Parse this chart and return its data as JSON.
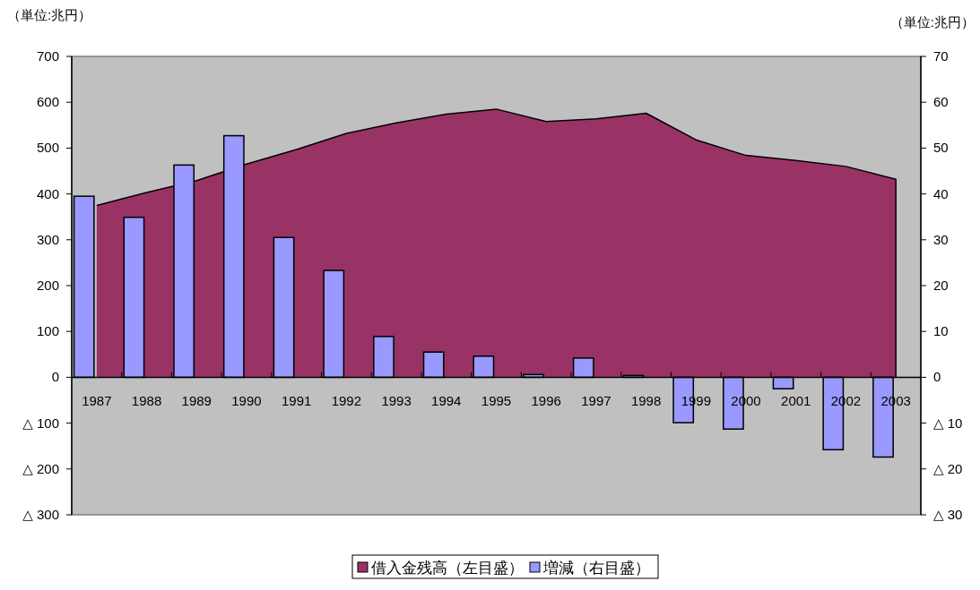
{
  "chart_data": {
    "type": "bar",
    "ylabel": "（単位:兆円）",
    "y2label": "（単位:兆円）",
    "categories": [
      "1987",
      "1988",
      "1989",
      "1990",
      "1991",
      "1992",
      "1993",
      "1994",
      "1995",
      "1996",
      "1997",
      "1998",
      "1999",
      "2000",
      "2001",
      "2002",
      "2003"
    ],
    "series": [
      {
        "name": "借入金残高（左目盛）",
        "type": "area",
        "color": "#993366",
        "values": [
          375,
          403,
          429,
          465,
          497,
          532,
          555,
          574,
          585,
          558,
          564,
          576,
          518,
          484,
          473,
          460,
          432
        ]
      },
      {
        "name": "増減（右目盛）",
        "axis": "y2",
        "color": "#9999ff",
        "values": [
          39.5,
          34.9,
          46.3,
          52.7,
          30.5,
          23.3,
          8.9,
          5.5,
          4.6,
          0.6,
          4.2,
          0.4,
          -9.9,
          -11.3,
          -2.5,
          -15.8,
          -17.4
        ]
      }
    ],
    "ylim": [
      -300,
      700
    ],
    "yticks": [
      {
        "value": -300,
        "label": "△ 300"
      },
      {
        "value": -200,
        "label": "△ 200"
      },
      {
        "value": -100,
        "label": "△ 100"
      },
      0,
      100,
      200,
      300,
      400,
      500,
      600,
      700
    ],
    "y2lim": [
      -30,
      70
    ],
    "y2ticks": [
      {
        "value": -30,
        "label": "△ 30"
      },
      {
        "value": -20,
        "label": "△ 20"
      },
      {
        "value": -10,
        "label": "△ 10"
      },
      0,
      10,
      20,
      30,
      40,
      50,
      60,
      70
    ],
    "legend": "bottom",
    "grid": false
  }
}
